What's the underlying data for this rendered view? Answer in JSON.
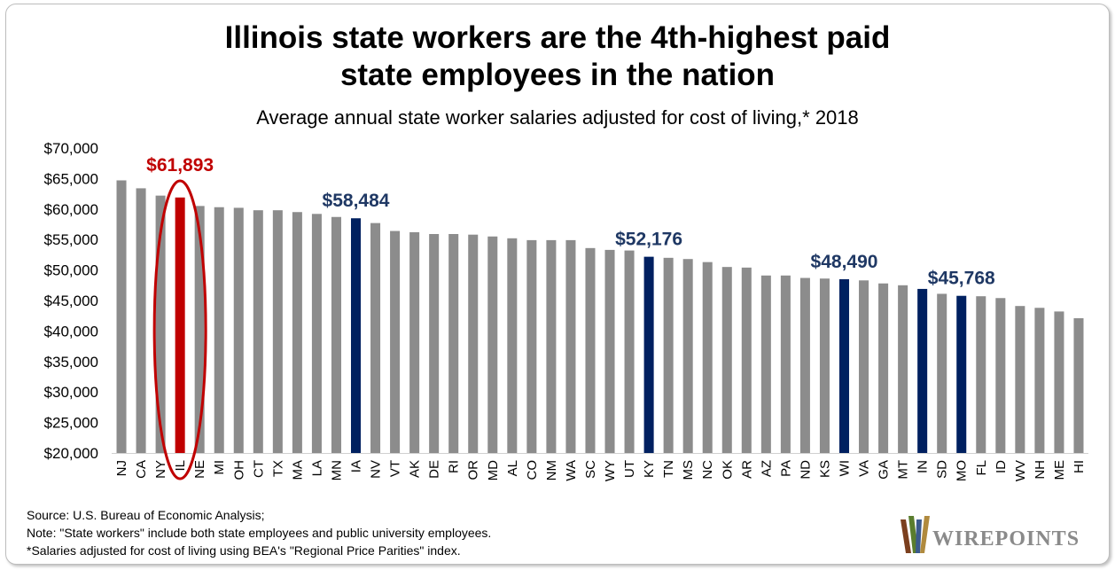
{
  "title_line1": "Illinois state workers are the 4th-highest paid",
  "title_line2": "state employees in the nation",
  "subtitle": "Average annual state worker salaries adjusted for cost of living,* 2018",
  "notes": [
    "Source: U.S. Bureau of Economic Analysis;",
    "Note: \"State workers\" include both state employees and public university employees.",
    "*Salaries adjusted for cost of living using BEA's \"Regional Price Parities\" index."
  ],
  "logo_text": "WIREPOINTS",
  "colors": {
    "default_bar": "#8c8c8c",
    "illinois_bar": "#c00000",
    "highlight_bar": "#002060",
    "illinois_label": "#c00000",
    "highlight_label": "#1f3864",
    "ellipse": "#c00000"
  },
  "chart_data": {
    "type": "bar",
    "title": "Illinois state workers are the 4th-highest paid state employees in the nation",
    "subtitle": "Average annual state worker salaries adjusted for cost of living,* 2018",
    "categories": [
      "NJ",
      "CA",
      "NY",
      "IL",
      "NE",
      "MI",
      "OH",
      "CT",
      "TX",
      "MA",
      "LA",
      "MN",
      "IA",
      "NV",
      "VT",
      "AK",
      "DE",
      "RI",
      "OR",
      "MD",
      "AL",
      "CO",
      "NM",
      "WA",
      "SC",
      "WY",
      "UT",
      "KY",
      "TN",
      "MS",
      "NC",
      "OK",
      "AR",
      "AZ",
      "PA",
      "ND",
      "KS",
      "WI",
      "VA",
      "GA",
      "MT",
      "IN",
      "SD",
      "MO",
      "FL",
      "ID",
      "WV",
      "NH",
      "ME",
      "HI"
    ],
    "values": [
      64700,
      63400,
      62200,
      61893,
      60500,
      60300,
      60200,
      59800,
      59800,
      59500,
      59200,
      58700,
      58484,
      57700,
      56400,
      56200,
      55900,
      55900,
      55800,
      55500,
      55200,
      54900,
      54900,
      54900,
      53600,
      53300,
      53200,
      52176,
      52000,
      51800,
      51300,
      50500,
      50400,
      49100,
      49100,
      48700,
      48600,
      48490,
      48300,
      47800,
      47500,
      46900,
      46100,
      45768,
      45700,
      45400,
      44100,
      43800,
      43200,
      42100
    ],
    "ylim": [
      20000,
      70000
    ],
    "yticks": [
      20000,
      25000,
      30000,
      35000,
      40000,
      45000,
      50000,
      55000,
      60000,
      65000,
      70000
    ],
    "ytick_labels": [
      "$20,000",
      "$25,000",
      "$30,000",
      "$35,000",
      "$40,000",
      "$45,000",
      "$50,000",
      "$55,000",
      "$60,000",
      "$65,000",
      "$70,000"
    ],
    "xlabel": "",
    "ylabel": "",
    "grid": false,
    "illinois_category": "IL",
    "highlighted_categories": [
      "IA",
      "KY",
      "WI",
      "IN",
      "MO"
    ],
    "data_labels": [
      {
        "category": "IL",
        "text": "$61,893",
        "emphasis": "illinois"
      },
      {
        "category": "IA",
        "text": "$58,484",
        "emphasis": "highlight"
      },
      {
        "category": "KY",
        "text": "$52,176",
        "emphasis": "highlight"
      },
      {
        "category": "WI",
        "text": "$48,490",
        "emphasis": "highlight"
      },
      {
        "category": "MO",
        "text": "$45,768",
        "emphasis": "highlight"
      }
    ]
  }
}
